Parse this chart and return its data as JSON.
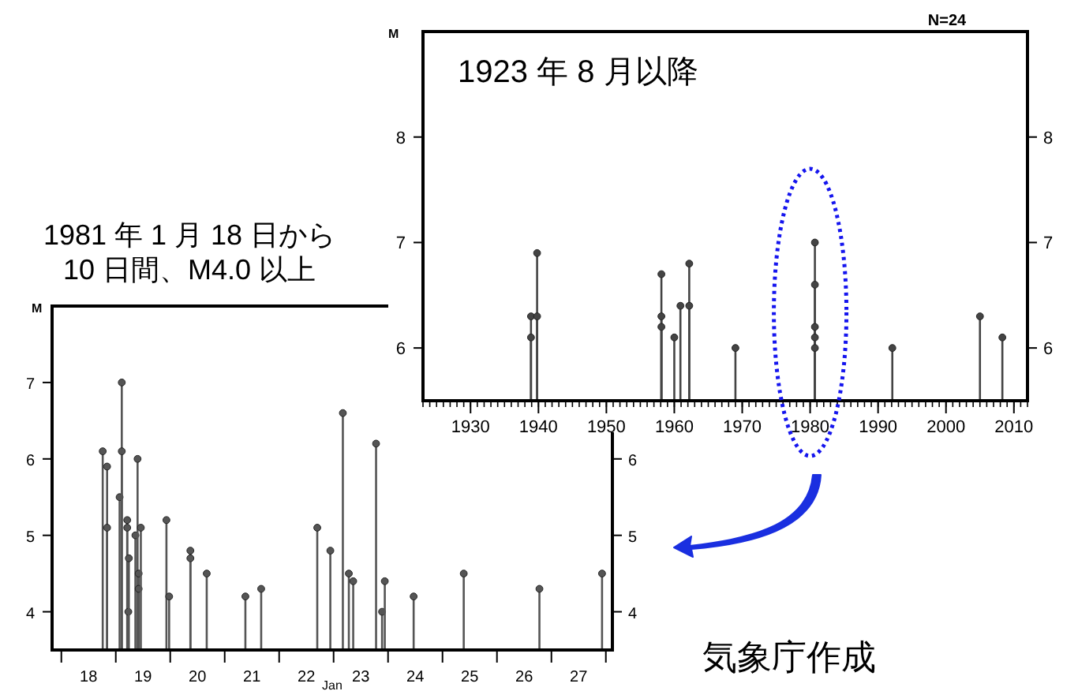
{
  "chart_data": [
    {
      "type": "lollipop",
      "title": "1923 年 8 月以降",
      "ylabel": "M",
      "annotations": [
        "N=24"
      ],
      "x": [
        1938.9,
        1938.9,
        1939.8,
        1939.8,
        1958.1,
        1958.1,
        1958.1,
        1960.0,
        1960.9,
        1962.2,
        1962.2,
        1969.0,
        1980.7,
        1980.7,
        1980.7,
        1980.7,
        1980.7,
        1992.1,
        2005.0,
        2008.3
      ],
      "values": [
        6.3,
        6.1,
        6.9,
        6.3,
        6.7,
        6.3,
        6.2,
        6.1,
        6.4,
        6.8,
        6.4,
        6.0,
        7.0,
        6.6,
        6.2,
        6.1,
        6.0,
        6.0,
        6.3,
        6.1
      ],
      "color": "#444444",
      "marker": "circle",
      "xlim": [
        1923,
        2012
      ],
      "xticks": [
        1930,
        1940,
        1950,
        1960,
        1970,
        1980,
        1990,
        2000,
        2010
      ],
      "ylim": [
        5.5,
        9
      ],
      "yticks": [
        6,
        7,
        8
      ],
      "y2lim": [
        5.5,
        9
      ],
      "y2ticks": [
        6,
        7,
        8
      ]
    },
    {
      "type": "lollipop",
      "title": "1981 年 1 月 18 日から\n10 日間、M4.0 以上",
      "ylabel": "M",
      "xlabel": "Jan",
      "annotations": [
        "気象庁作成"
      ],
      "x": [
        18.76,
        18.84,
        18.84,
        19.07,
        19.11,
        19.11,
        19.21,
        19.21,
        19.23,
        19.24,
        19.36,
        19.4,
        19.42,
        19.42,
        19.46,
        19.93,
        19.98,
        20.37,
        20.37,
        20.67,
        21.38,
        21.67,
        22.7,
        22.94,
        23.17,
        23.28,
        23.36,
        23.78,
        23.89,
        23.94,
        24.47,
        25.39,
        26.78,
        27.93
      ],
      "values": [
        6.1,
        5.9,
        5.1,
        5.5,
        7.0,
        6.1,
        5.2,
        5.1,
        4.0,
        4.7,
        5.0,
        6.0,
        4.5,
        4.3,
        5.1,
        5.2,
        4.2,
        4.8,
        4.7,
        4.5,
        4.2,
        4.3,
        5.1,
        4.8,
        6.6,
        4.5,
        4.4,
        6.2,
        4.0,
        4.4,
        4.2,
        4.5,
        4.3,
        4.5
      ],
      "color": "#555555",
      "marker": "circle",
      "xlim": [
        17.83,
        28.12
      ],
      "xticks": [
        {
          "value": 18,
          "label": null
        },
        {
          "value": 19,
          "label": null
        },
        {
          "value": 20,
          "label": null
        },
        {
          "value": 21,
          "label": null
        },
        {
          "value": 22,
          "label": null
        },
        {
          "value": 23,
          "label": null
        },
        {
          "value": 24,
          "label": null
        },
        {
          "value": 25,
          "label": null
        },
        {
          "value": 26,
          "label": null
        },
        {
          "value": 27,
          "label": null
        },
        {
          "value": 28,
          "label": null
        },
        {
          "value": 18.5,
          "label": "18"
        },
        {
          "value": 19.5,
          "label": "19"
        },
        {
          "value": 20.5,
          "label": "20"
        },
        {
          "value": 21.5,
          "label": "21"
        },
        {
          "value": 22.5,
          "label": "22"
        },
        {
          "value": 23.5,
          "label": "23"
        },
        {
          "value": 24.5,
          "label": "24"
        },
        {
          "value": 25.5,
          "label": "25"
        },
        {
          "value": 26.5,
          "label": "26"
        },
        {
          "value": 27.5,
          "label": "27"
        }
      ],
      "ylim": [
        3.5,
        8
      ],
      "yticks": [
        4,
        5,
        6,
        7
      ],
      "y2lim": [
        3.5,
        8
      ],
      "y2ticks": [
        4,
        5,
        6
      ]
    }
  ]
}
